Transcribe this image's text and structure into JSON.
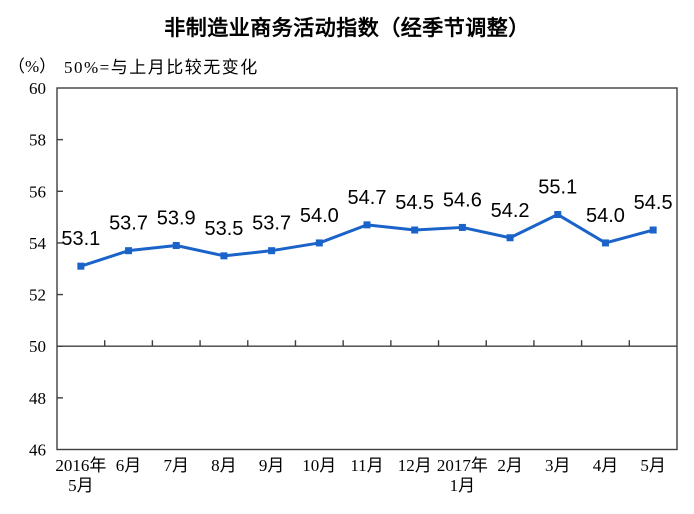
{
  "page": {
    "background": "#ffffff"
  },
  "chart_data": {
    "type": "line",
    "title": "非制造业商务活动指数（经季节调整）",
    "unit_label": "（%）",
    "subtitle": "50%=与上月比较无变化",
    "categories": [
      "2016年|5月",
      "6月",
      "7月",
      "8月",
      "9月",
      "10月",
      "11月",
      "12月",
      "2017年|1月",
      "2月",
      "3月",
      "4月",
      "5月"
    ],
    "values": [
      53.1,
      53.7,
      53.9,
      53.5,
      53.7,
      54.0,
      54.7,
      54.5,
      54.6,
      54.2,
      55.1,
      54.0,
      54.5
    ],
    "data_labels": [
      "53.1",
      "53.7",
      "53.9",
      "53.5",
      "53.7",
      "54.0",
      "54.7",
      "54.5",
      "54.6",
      "54.2",
      "55.1",
      "54.0",
      "54.5"
    ],
    "ylim": [
      46,
      60
    ],
    "yticks": [
      60,
      58,
      56,
      54,
      52,
      50,
      48,
      46
    ],
    "reference_line_y": 50,
    "grid": false,
    "legend_position": "none",
    "marker": "square",
    "line_color": "#1a63c8",
    "axis_color": "#3f3f3f",
    "text_color": "#000000"
  }
}
